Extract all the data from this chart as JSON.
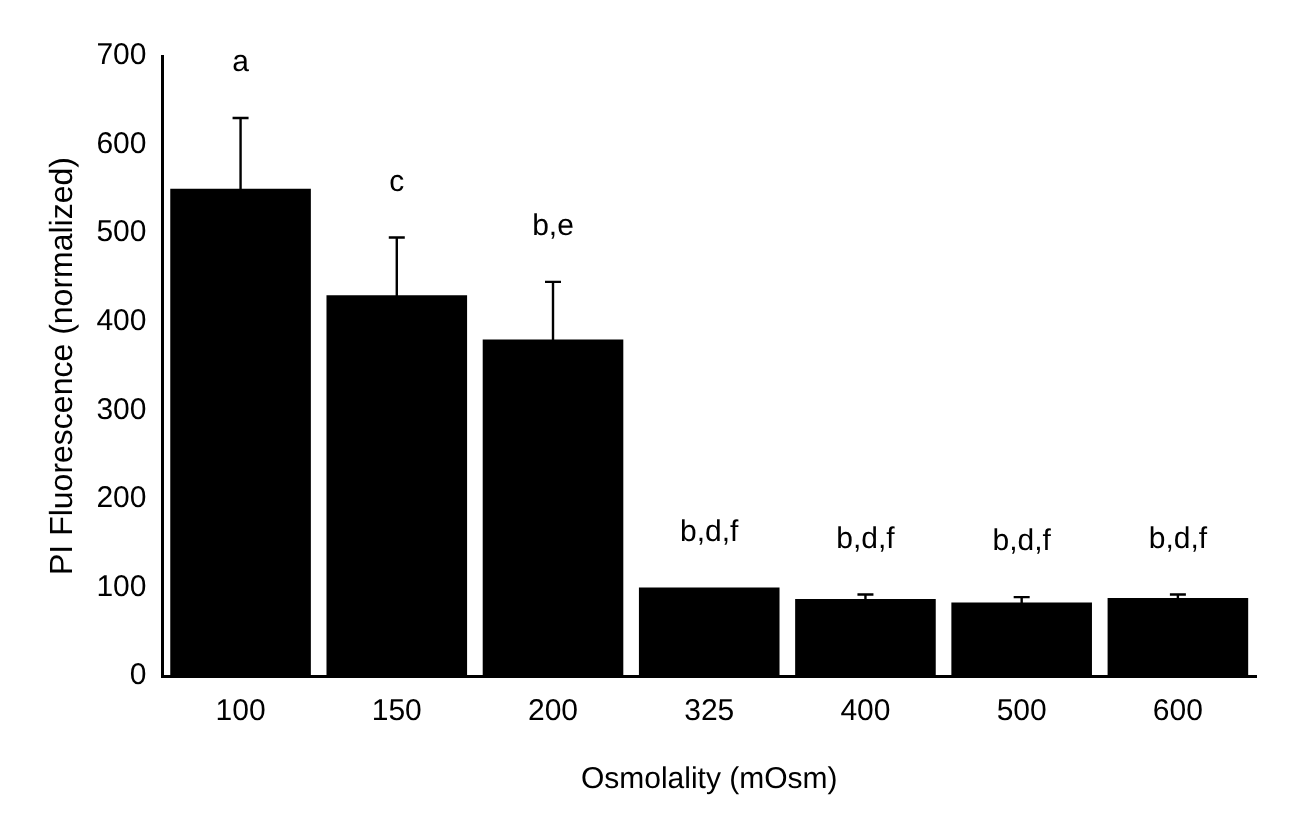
{
  "chart_data": {
    "type": "bar",
    "xlabel": "Osmolality (mOsm)",
    "ylabel": "PI Fluorescence (normalized)",
    "categories": [
      "100",
      "150",
      "200",
      "325",
      "400",
      "500",
      "600"
    ],
    "values": [
      550,
      430,
      380,
      100,
      87,
      83,
      88
    ],
    "errors": [
      80,
      65,
      65,
      null,
      5,
      6,
      4
    ],
    "color": "#000000",
    "ylim": [
      0,
      700
    ],
    "yticks": [
      0,
      100,
      200,
      300,
      400,
      500,
      600,
      700
    ],
    "grid": false,
    "legend": false,
    "annotations": [
      {
        "text": "a",
        "x": "100",
        "y": 630
      },
      {
        "text": "c",
        "x": "150",
        "y": 495
      },
      {
        "text": "b,e",
        "x": "200",
        "y": 445
      },
      {
        "text": "b,d,f",
        "x": "325",
        "y": 100
      },
      {
        "text": "b,d,f",
        "x": "400",
        "y": 92
      },
      {
        "text": "b,d,f",
        "x": "500",
        "y": 89
      },
      {
        "text": "b,d,f",
        "x": "600",
        "y": 92
      }
    ]
  }
}
